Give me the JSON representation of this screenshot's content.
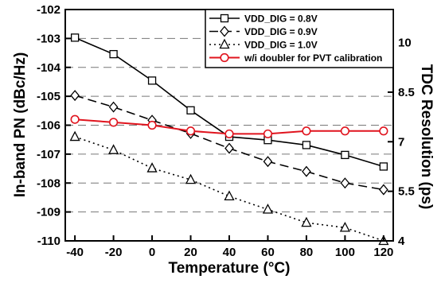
{
  "chart_data": {
    "type": "line",
    "xlabel": "Temperature (°C)",
    "ylabel": "In-band PN (dBc/Hz)",
    "y2label": "TDC Resolution (ps)",
    "x": [
      -40,
      -20,
      0,
      20,
      40,
      60,
      80,
      100,
      120
    ],
    "xlim": [
      -45,
      125
    ],
    "ylim": [
      -110,
      -102
    ],
    "y2lim": [
      4,
      11
    ],
    "xticks": [
      "-40",
      "-20",
      "0",
      "20",
      "40",
      "60",
      "80",
      "100",
      "120"
    ],
    "yticks": [
      "-102",
      "-103",
      "-104",
      "-105",
      "-106",
      "-107",
      "-108",
      "-109",
      "-110"
    ],
    "y2ticks": [
      "4",
      "5.5",
      "7",
      "8.5",
      "10"
    ],
    "grid": "horizontal dashed",
    "legend_position": "top-right",
    "series": [
      {
        "name": "VDD_DIG = 0.8V",
        "marker": "square",
        "line": "solid",
        "color": "#000000",
        "axis": "right",
        "values": [
          10.15,
          9.65,
          8.85,
          7.95,
          7.15,
          7.05,
          6.9,
          6.6,
          6.25
        ]
      },
      {
        "name": "VDD_DIG = 0.9V",
        "marker": "diamond",
        "line": "dashed",
        "color": "#000000",
        "axis": "right",
        "values": [
          8.4,
          8.05,
          7.65,
          7.25,
          6.8,
          6.4,
          6.1,
          5.75,
          5.55
        ]
      },
      {
        "name": "VDD_DIG = 1.0V",
        "marker": "triangle",
        "line": "dotted",
        "color": "#000000",
        "axis": "right",
        "values": [
          7.15,
          6.75,
          6.2,
          5.85,
          5.35,
          4.95,
          4.55,
          4.4,
          4.0
        ]
      },
      {
        "name": "w/i doubler for PVT calibration",
        "marker": "circle",
        "line": "solid",
        "color": "#e0141e",
        "axis": "left",
        "values": [
          -105.8,
          -105.9,
          -106.0,
          -106.2,
          -106.3,
          -106.3,
          -106.2,
          -106.2,
          -106.2
        ]
      }
    ]
  }
}
